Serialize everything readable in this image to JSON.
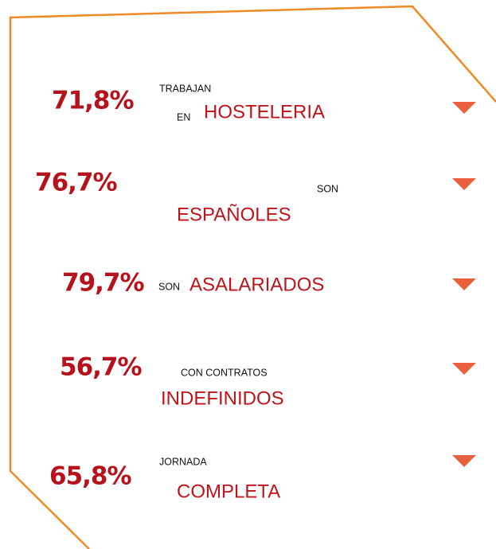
{
  "items": [
    {
      "percent": "71,8%",
      "lead": "TRABAJAN",
      "prefix": "EN",
      "highlight": "HOSTELERIA"
    },
    {
      "percent": "76,7%",
      "lead": "SON",
      "highlight": "ESPAÑOLES"
    },
    {
      "percent": "79,7%",
      "prefix": "SON",
      "highlight": "ASALARIADOS"
    },
    {
      "percent": "56,7%",
      "lead": "CON CONTRATOS",
      "highlight": "INDEFINIDOS"
    },
    {
      "percent": "65,8%",
      "lead": "JORNADA",
      "highlight": "COMPLETA"
    }
  ]
}
